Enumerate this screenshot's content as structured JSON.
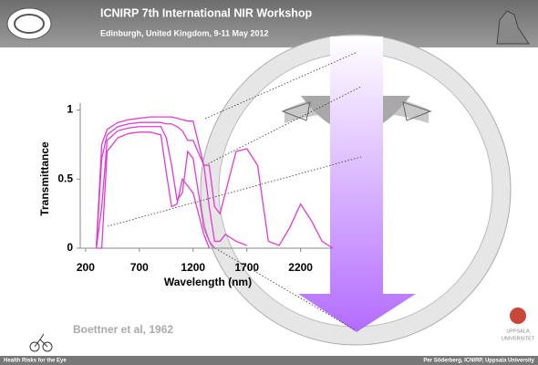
{
  "header": {
    "title": "ICNIRP 7th International NIR Workshop",
    "subtitle": "Edinburgh, United Kingdom, 9-11 May 2012"
  },
  "footer": {
    "left": "Health Risks for the Eye",
    "right": "Per Söderberg, ICNIRP, Uppsala University"
  },
  "logo_text": [
    "UPPSALA",
    "UNIVERSITET"
  ],
  "chart_data": {
    "type": "line",
    "citation": "Boettner et al, 1962",
    "x_label": "Wavelength (nm)",
    "y_label": "Transmittance",
    "x": [
      300,
      350,
      400,
      500,
      600,
      700,
      800,
      900,
      950,
      1000,
      1050,
      1100,
      1150,
      1200,
      1300,
      1350,
      1400,
      1450,
      1500,
      1600,
      1700,
      1800,
      1900,
      2000,
      2100,
      2200,
      2300,
      2400,
      2500
    ],
    "series": [
      {
        "color": "#e03cd0",
        "values": [
          0.02,
          0.75,
          0.86,
          0.91,
          0.93,
          0.94,
          0.95,
          0.95,
          0.95,
          0.95,
          0.94,
          0.93,
          0.92,
          0.92,
          0.6,
          0.6,
          0.3,
          0.25,
          0.4,
          0.7,
          0.72,
          0.6,
          0.05,
          0.02,
          0.15,
          0.32,
          0.2,
          0.05,
          0
        ]
      },
      {
        "color": "#e03cd0",
        "values": [
          0.01,
          0.65,
          0.82,
          0.88,
          0.9,
          0.91,
          0.91,
          0.91,
          0.9,
          0.9,
          0.88,
          0.85,
          0.78,
          0.78,
          0.6,
          0.3,
          0.05,
          0.05,
          0.1,
          0.05,
          0.02,
          null,
          null,
          null,
          null,
          null,
          null,
          null,
          null
        ]
      },
      {
        "color": "#e03cd0",
        "values": [
          0,
          0.3,
          0.78,
          0.85,
          0.87,
          0.88,
          0.88,
          0.88,
          0.8,
          0.6,
          0.35,
          0.4,
          0.7,
          0.65,
          0.15,
          0.05,
          0,
          null,
          null,
          null,
          null,
          null,
          null,
          null,
          null,
          null,
          null,
          null,
          null
        ]
      },
      {
        "color": "#e03cd0",
        "values": [
          0,
          0,
          0.7,
          0.8,
          0.83,
          0.84,
          0.84,
          0.82,
          0.55,
          0.3,
          0.32,
          0.5,
          0.45,
          0.4,
          0.1,
          0,
          null,
          null,
          null,
          null,
          null,
          null,
          null,
          null,
          null,
          null,
          null,
          null,
          null
        ]
      }
    ],
    "xlim": [
      150,
      2500
    ],
    "xticks": [
      200,
      700,
      1200,
      1700,
      2200
    ],
    "ylim": [
      0,
      1.05
    ],
    "yticks": [
      0,
      0.5,
      1
    ]
  }
}
